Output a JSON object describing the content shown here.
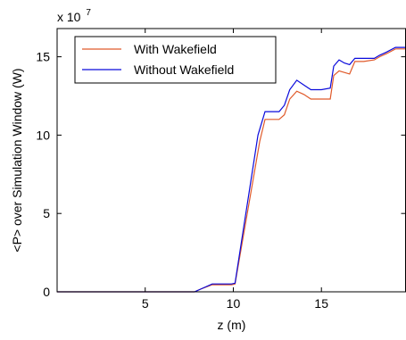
{
  "chart_data": {
    "type": "line",
    "xlabel": "z (m)",
    "ylabel": "<P> over Simulation Window (W)",
    "y_multiplier": "x 10",
    "y_multiplier_exp": "7",
    "xlim": [
      0,
      19.8
    ],
    "ylim": [
      0,
      16.8
    ],
    "xticks": [
      5,
      10,
      15
    ],
    "xtick_labels": [
      "5",
      "10",
      "15"
    ],
    "yticks": [
      0,
      5,
      10,
      15
    ],
    "ytick_labels": [
      "0",
      "5",
      "10",
      "15"
    ],
    "grid": false,
    "legend_position": "top-left",
    "series": [
      {
        "name": "With Wakefield",
        "color": "#e05a2a",
        "x": [
          0,
          7.8,
          8.2,
          8.8,
          9.9,
          10.1,
          11.5,
          11.8,
          12.6,
          12.9,
          13.2,
          13.6,
          14.0,
          14.4,
          15.0,
          15.5,
          15.7,
          16.0,
          16.3,
          16.6,
          16.9,
          17.4,
          18.0,
          18.3,
          18.7,
          19.2,
          19.8
        ],
        "y": [
          0,
          0,
          0.2,
          0.45,
          0.45,
          0.5,
          9.6,
          11.0,
          11.0,
          11.3,
          12.3,
          12.8,
          12.6,
          12.3,
          12.3,
          12.3,
          13.8,
          14.1,
          14.0,
          13.9,
          14.7,
          14.7,
          14.8,
          15.0,
          15.2,
          15.5,
          15.5
        ]
      },
      {
        "name": "Without Wakefield",
        "color": "#0a0adc",
        "x": [
          0,
          7.8,
          8.2,
          8.8,
          9.9,
          10.1,
          11.4,
          11.8,
          12.6,
          12.9,
          13.2,
          13.6,
          14.0,
          14.4,
          15.0,
          15.5,
          15.7,
          16.0,
          16.3,
          16.6,
          16.9,
          17.4,
          18.0,
          18.3,
          18.7,
          19.2,
          19.8
        ],
        "y": [
          0,
          0,
          0.2,
          0.5,
          0.5,
          0.55,
          10.0,
          11.5,
          11.5,
          11.9,
          12.9,
          13.5,
          13.2,
          12.9,
          12.9,
          13.0,
          14.4,
          14.8,
          14.6,
          14.5,
          14.9,
          14.9,
          14.9,
          15.1,
          15.3,
          15.6,
          15.6
        ]
      }
    ]
  }
}
